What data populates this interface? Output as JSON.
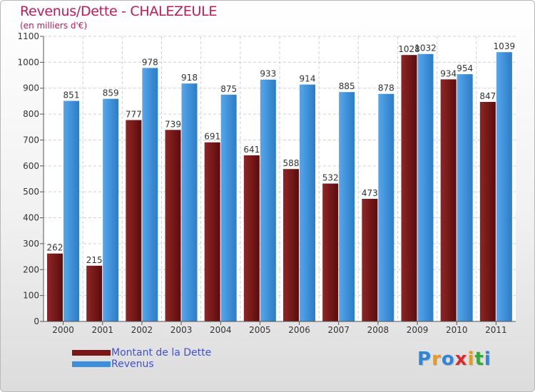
{
  "chart_data": {
    "type": "bar",
    "title": "Revenus/Dette - CHALEZEULE",
    "subtitle": "(en milliers d'€)",
    "categories": [
      "2000",
      "2001",
      "2002",
      "2003",
      "2004",
      "2005",
      "2006",
      "2007",
      "2008",
      "2009",
      "2010",
      "2011"
    ],
    "series": [
      {
        "name": "Montant de la Dette",
        "color": "#7a1616",
        "values": [
          262,
          215,
          777,
          739,
          691,
          641,
          588,
          532,
          473,
          1028,
          934,
          847
        ]
      },
      {
        "name": "Revenus",
        "color": "#3d8fdb",
        "values": [
          851,
          859,
          978,
          918,
          875,
          933,
          914,
          885,
          878,
          1032,
          954,
          1039
        ]
      }
    ],
    "ylim": [
      0,
      1100
    ],
    "yticks": [
      0,
      100,
      200,
      300,
      400,
      500,
      600,
      700,
      800,
      900,
      1000,
      1100
    ],
    "grid": true,
    "legend_position": "bottom-left"
  },
  "logo": {
    "letters": [
      {
        "ch": "P",
        "color": "#2f86d6"
      },
      {
        "ch": "r",
        "color": "#e89a1a"
      },
      {
        "ch": "o",
        "color": "#2f86d6"
      },
      {
        "ch": "x",
        "color": "#d92b2b"
      },
      {
        "ch": "i",
        "color": "#e89a1a"
      },
      {
        "ch": "t",
        "color": "#38a838"
      },
      {
        "ch": "i",
        "color": "#2f86d6"
      }
    ]
  }
}
